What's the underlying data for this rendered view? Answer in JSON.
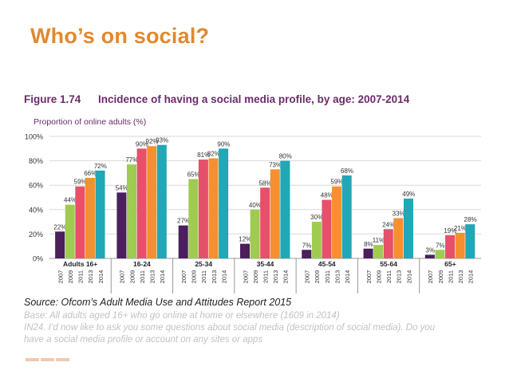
{
  "slide": {
    "title": "Who’s on social?"
  },
  "figure": {
    "number": "Figure 1.74",
    "title": "Incidence of having a social media profile, by age: 2007-2014"
  },
  "chart_data": {
    "type": "bar",
    "ylabel": "Proportion of online adults (%)",
    "ylim": [
      0,
      100
    ],
    "yticks": [
      "0%",
      "20%",
      "40%",
      "60%",
      "80%",
      "100%"
    ],
    "grid": true,
    "years": [
      "2007",
      "2009",
      "2011",
      "2013",
      "2014"
    ],
    "colors": [
      "#4a1f5c",
      "#9fcb51",
      "#e6506a",
      "#f4902f",
      "#21a7b5"
    ],
    "groups": [
      {
        "name": "Adults 16+",
        "values": [
          22,
          44,
          59,
          66,
          72
        ],
        "labels": [
          "22%",
          "44%",
          "59%",
          "66%",
          "72%"
        ]
      },
      {
        "name": "16-24",
        "values": [
          54,
          77,
          90,
          92,
          93
        ],
        "labels": [
          "54%",
          "77%",
          "90%",
          "92%",
          "93%"
        ]
      },
      {
        "name": "25-34",
        "values": [
          27,
          65,
          81,
          82,
          90
        ],
        "labels": [
          "27%",
          "65%",
          "81%",
          "82%",
          "90%"
        ]
      },
      {
        "name": "35-44",
        "values": [
          12,
          40,
          58,
          73,
          80
        ],
        "labels": [
          "12%",
          "40%",
          "58%",
          "73%",
          "80%"
        ]
      },
      {
        "name": "45-54",
        "values": [
          7,
          30,
          48,
          59,
          68
        ],
        "labels": [
          "7%",
          "30%",
          "48%",
          "59%",
          "68%"
        ]
      },
      {
        "name": "55-64",
        "values": [
          8,
          11,
          24,
          33,
          49
        ],
        "labels": [
          "8%",
          "11%",
          "24%",
          "33%",
          "49%"
        ]
      },
      {
        "name": "65+",
        "values": [
          3,
          7,
          19,
          21,
          28
        ],
        "labels": [
          "3%",
          "7%",
          "19%",
          "21%",
          "28%"
        ]
      }
    ]
  },
  "source": {
    "text": "Source: Ofcom’s Adult Media Use and Attitudes Report 2015"
  },
  "notes": {
    "base": "Base: All adults aged 16+ who go online at home or elsewhere (1609 in 2014)",
    "question_1": "IN24. I’d now like to ask you some questions about social media (description of social media). Do you",
    "question_2": "have a social media profile or account on any sites or apps"
  }
}
